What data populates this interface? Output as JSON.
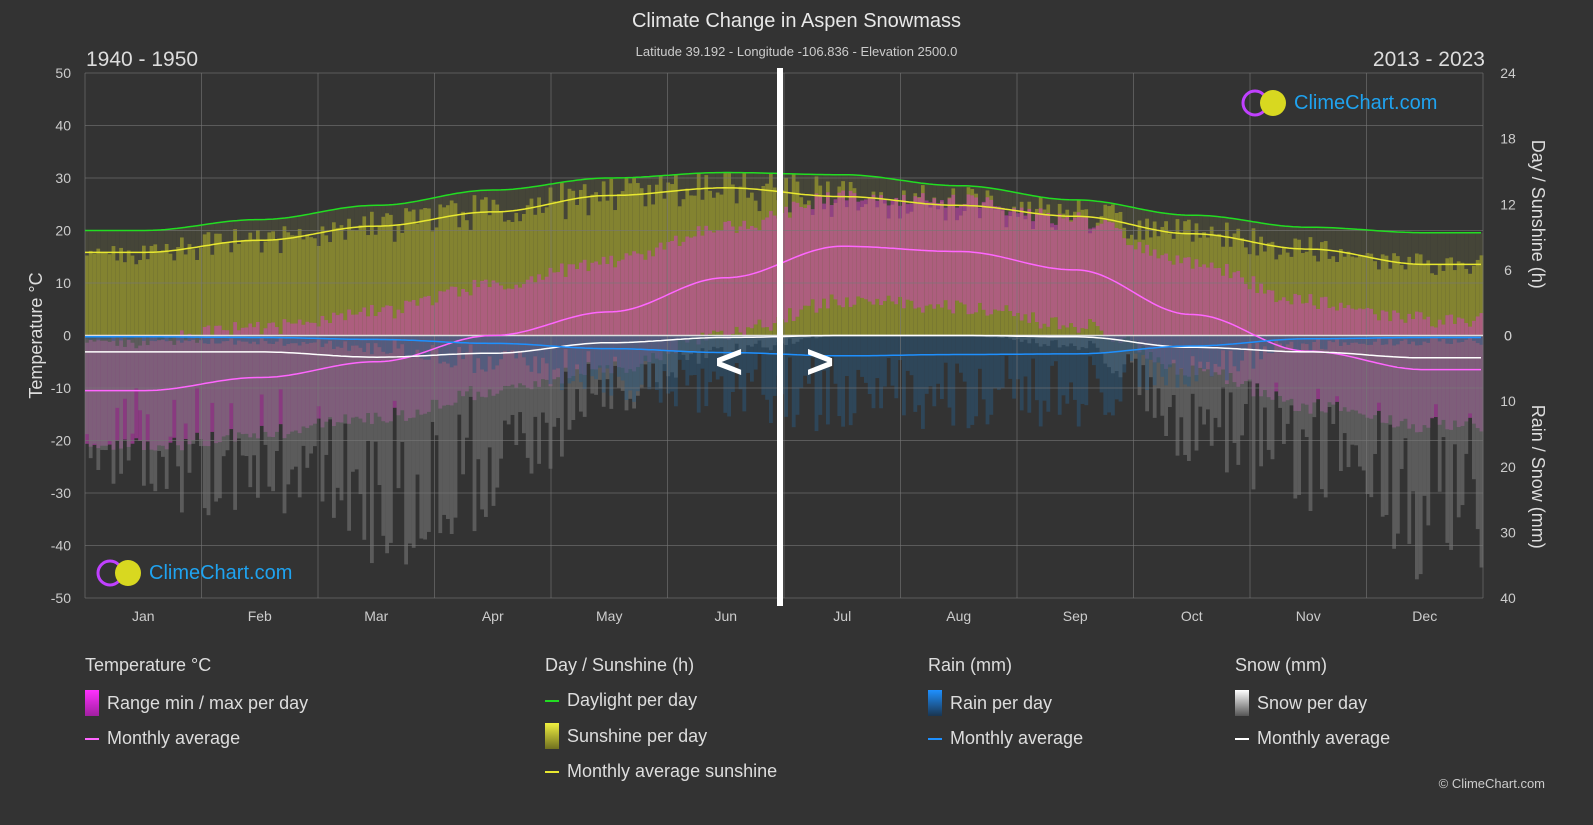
{
  "title": "Climate Change in Aspen Snowmass",
  "subtitle": "Latitude 39.192 - Longitude -106.836 - Elevation 2500.0",
  "period_left": "1940 - 1950",
  "period_right": "2013 - 2023",
  "nav": {
    "prev": "<",
    "next": ">"
  },
  "logo_text": "ClimeChart.com",
  "copyright": "© ClimeChart.com",
  "colors": {
    "background": "#333333",
    "daylight": "#22dd22",
    "sunshine": "#e8e830",
    "temp_avg": "#ff66ff",
    "temp_range": "#e040e0",
    "rain": "#1e90ff",
    "snow": "#ffffff"
  },
  "legend": {
    "temperature": {
      "title": "Temperature °C",
      "items": [
        "Range min / max per day",
        "Monthly average"
      ]
    },
    "sunshine": {
      "title": "Day / Sunshine (h)",
      "items": [
        "Daylight per day",
        "Sunshine per day",
        "Monthly average sunshine"
      ]
    },
    "rain": {
      "title": "Rain (mm)",
      "items": [
        "Rain per day",
        "Monthly average"
      ]
    },
    "snow": {
      "title": "Snow (mm)",
      "items": [
        "Snow per day",
        "Monthly average"
      ]
    }
  },
  "chart_data": {
    "type": "line",
    "categories": [
      "Jan",
      "Feb",
      "Mar",
      "Apr",
      "May",
      "Jun",
      "Jul",
      "Aug",
      "Sep",
      "Oct",
      "Nov",
      "Dec"
    ],
    "split_note_left_months": "Jan-Jun show 1940 - 1950, Jul-Dec show 2013 - 2023",
    "y_left": {
      "label": "Temperature °C",
      "range": [
        -50,
        50
      ],
      "ticks": [
        50,
        40,
        30,
        20,
        10,
        0,
        -10,
        -20,
        -30,
        -40,
        -50
      ]
    },
    "y_right_top": {
      "label": "Day / Sunshine (h)",
      "range": [
        0,
        24
      ],
      "ticks": [
        24,
        18,
        12,
        6,
        0
      ]
    },
    "y_right_bottom": {
      "label": "Rain / Snow (mm)",
      "range": [
        0,
        40
      ],
      "ticks": [
        0,
        10,
        20,
        30,
        40
      ]
    },
    "grid": true,
    "series": [
      {
        "name": "Monthly average",
        "group": "temperature",
        "values": [
          -10.5,
          -8,
          -5,
          0,
          4.5,
          11,
          17,
          16,
          12.5,
          4,
          -3,
          -6.5
        ]
      },
      {
        "name": "Daylight per day",
        "group": "sunshine",
        "values": [
          9.6,
          10.6,
          11.9,
          13.3,
          14.4,
          14.9,
          14.7,
          13.7,
          12.4,
          11.0,
          9.9,
          9.4
        ]
      },
      {
        "name": "Monthly average sunshine",
        "group": "sunshine",
        "values": [
          7.6,
          8.7,
          10.0,
          11.3,
          12.8,
          13.5,
          12.7,
          11.9,
          10.9,
          9.3,
          7.9,
          6.5
        ]
      },
      {
        "name": "Monthly average",
        "group": "rain",
        "values": [
          0.2,
          0.3,
          0.6,
          1.2,
          2.0,
          2.6,
          3.1,
          2.9,
          2.8,
          1.6,
          0.5,
          0.3
        ]
      },
      {
        "name": "Monthly average",
        "group": "snow",
        "values": [
          2.5,
          2.5,
          3.3,
          2.7,
          1.1,
          0.3,
          0,
          0,
          0.2,
          1.8,
          2.5,
          3.4
        ]
      }
    ]
  }
}
